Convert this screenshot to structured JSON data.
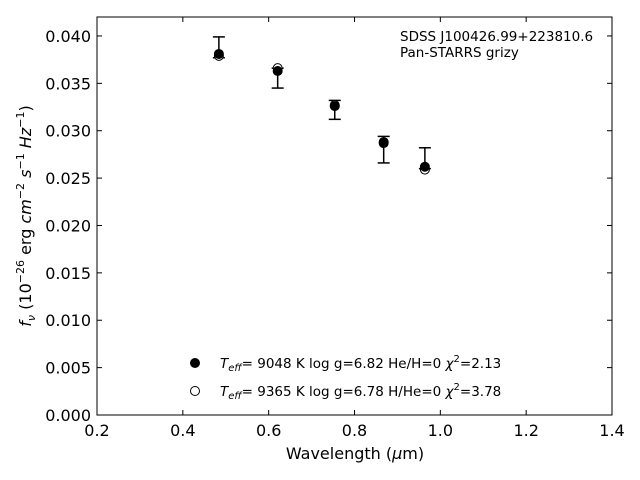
{
  "chart_data": {
    "type": "scatter",
    "xlabel": "Wavelength (μm)",
    "ylabel": "f_ν (10^-26 erg cm^-2 s^-1 Hz^-1)",
    "xlim": [
      0.2,
      1.4
    ],
    "ylim": [
      0.0,
      0.042
    ],
    "xticks": [
      "0.2",
      "0.4",
      "0.6",
      "0.8",
      "1.0",
      "1.2",
      "1.4"
    ],
    "yticks": [
      "0.000",
      "0.005",
      "0.010",
      "0.015",
      "0.020",
      "0.025",
      "0.030",
      "0.035",
      "0.040"
    ],
    "grid": false,
    "annotation": [
      "SDSS J100426.99+223810.6",
      "Pan-STARRS grizy"
    ],
    "observed": {
      "x": [
        0.484,
        0.621,
        0.754,
        0.868,
        0.964
      ],
      "y": [
        0.0381,
        0.0363,
        0.0326,
        0.0288,
        0.0262
      ],
      "yerr_low": [
        0.0004,
        0.0018,
        0.0014,
        0.0022,
        0.0002
      ],
      "yerr_high": [
        0.0018,
        0.0003,
        0.0006,
        0.0006,
        0.002
      ]
    },
    "series": [
      {
        "marker": "filled",
        "x": [
          0.484,
          0.621,
          0.754,
          0.868,
          0.964
        ],
        "y": [
          0.0381,
          0.0363,
          0.0326,
          0.0288,
          0.0262
        ]
      },
      {
        "marker": "open",
        "x": [
          0.484,
          0.621,
          0.754,
          0.868,
          0.964
        ],
        "y": [
          0.0379,
          0.0366,
          0.0327,
          0.0287,
          0.0259
        ]
      }
    ],
    "legend": [
      {
        "marker": "filled",
        "teff": "9048 K",
        "logg": "log g=6.82",
        "comp": "He/H=0",
        "chi2": "=2.13"
      },
      {
        "marker": "open",
        "teff": "9365 K",
        "logg": "log g=6.78",
        "comp": "H/He=0",
        "chi2": "=3.78"
      }
    ],
    "legend_position": "bottom-center"
  }
}
